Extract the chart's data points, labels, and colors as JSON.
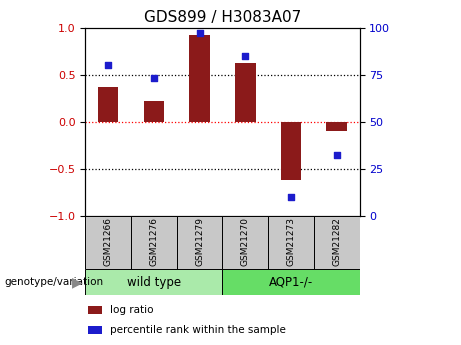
{
  "title": "GDS899 / H3083A07",
  "samples": [
    "GSM21266",
    "GSM21276",
    "GSM21279",
    "GSM21270",
    "GSM21273",
    "GSM21282"
  ],
  "log_ratios": [
    0.37,
    0.22,
    0.92,
    0.62,
    -0.62,
    -0.1
  ],
  "percentile_ranks": [
    80,
    73,
    97,
    85,
    10,
    32
  ],
  "bar_color": "#8B1A1A",
  "dot_color": "#1C1CCC",
  "ylim_left": [
    -1,
    1
  ],
  "ylim_right": [
    0,
    100
  ],
  "yticks_left": [
    -1,
    -0.5,
    0,
    0.5,
    1
  ],
  "yticks_right": [
    0,
    25,
    50,
    75,
    100
  ],
  "legend_items": [
    {
      "label": "log ratio",
      "color": "#8B1A1A"
    },
    {
      "label": "percentile rank within the sample",
      "color": "#1C1CCC"
    }
  ],
  "left_label": "genotype/variation",
  "group_labels": [
    "wild type",
    "AQP1-/-"
  ],
  "group_colors": [
    "#AAEAAA",
    "#66DD66"
  ],
  "group_ranges": [
    [
      0,
      3
    ],
    [
      3,
      6
    ]
  ],
  "tick_label_color_left": "#CC0000",
  "tick_label_color_right": "#0000CC",
  "background_color": "#ffffff",
  "plot_bg_color": "#ffffff",
  "box_color": "#C8C8C8"
}
